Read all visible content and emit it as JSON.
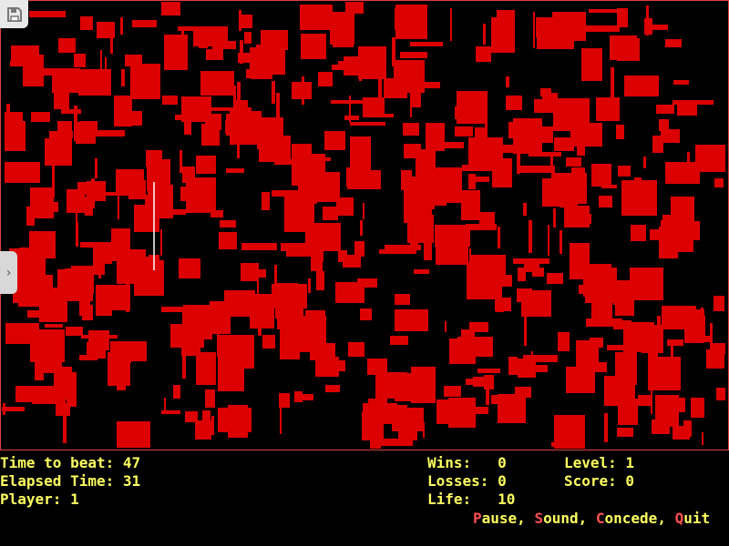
{
  "colors": {
    "obstacle": "#dd0000",
    "border": "#e04040",
    "hud_text": "#ffff60",
    "hotkey": "#ff5050",
    "trail": "#ffffff"
  },
  "hud": {
    "time_to_beat": "Time to beat: 47",
    "elapsed_time": "Elapsed Time: 31",
    "player": "Player: 1",
    "wins": "Wins:   0",
    "losses": "Losses: 0",
    "life": "Life:   10",
    "level": "Level: 1",
    "score": "Score: 0"
  },
  "menu": [
    {
      "key": "P",
      "rest": "ause"
    },
    {
      "key": "S",
      "rest": "ound"
    },
    {
      "key": "C",
      "rest": "oncede"
    },
    {
      "key": "Q",
      "rest": "uit"
    }
  ],
  "icons": {
    "save": "floppy-disk-icon",
    "expand": "chevron-right-icon"
  }
}
